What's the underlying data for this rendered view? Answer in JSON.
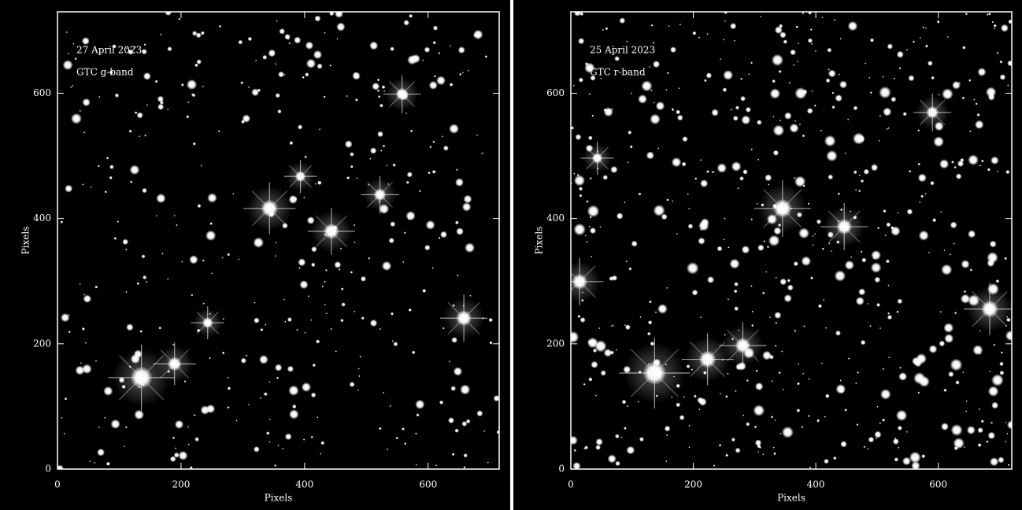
{
  "chart_data": [
    {
      "type": "image",
      "date_label": "27 April 2023",
      "band_label": "GTC g-band",
      "xlabel": "Pixels",
      "ylabel": "Pixels",
      "xlim": [
        0,
        715
      ],
      "ylim": [
        0,
        730
      ],
      "xticks": [
        0,
        200,
        400,
        600
      ],
      "yticks": [
        0,
        200,
        400,
        600
      ]
    },
    {
      "type": "image",
      "date_label": "25 April 2023",
      "band_label": "GTC r-band",
      "xlabel": "Pixels",
      "ylabel": "Pixels",
      "xlim": [
        0,
        720
      ],
      "ylim": [
        0,
        730
      ],
      "xticks": [
        0,
        200,
        400,
        600
      ],
      "yticks": [
        0,
        200,
        400,
        600
      ]
    }
  ]
}
